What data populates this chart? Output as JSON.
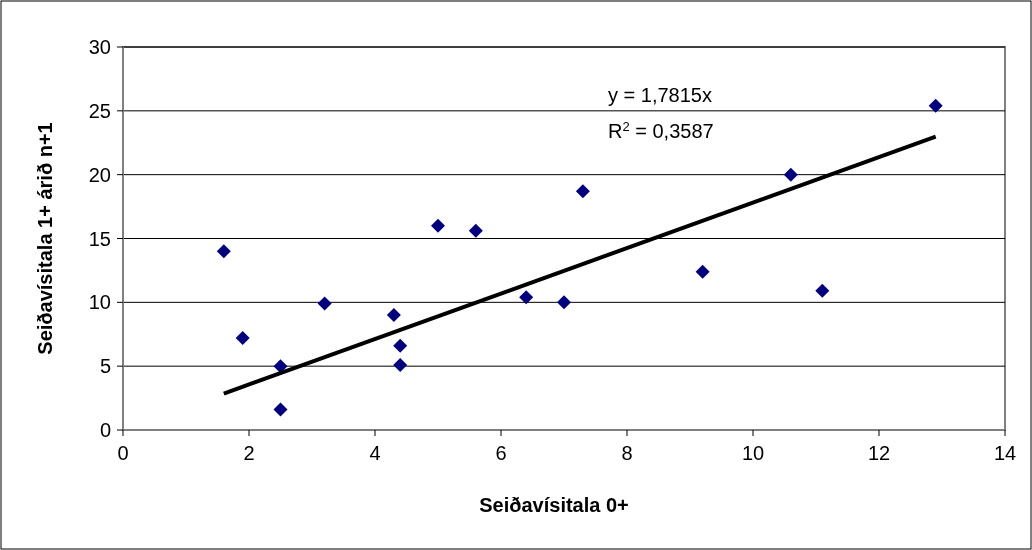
{
  "chart_data": {
    "type": "scatter",
    "xlabel": "Seiðavísitala 0+",
    "ylabel": "Seiðavísitala 1+ árið n+1",
    "series": [
      {
        "color": "#000080",
        "marker": "diamond",
        "x": [
          1.6,
          1.9,
          2.5,
          2.5,
          3.2,
          4.3,
          4.4,
          4.4,
          5.0,
          5.6,
          6.4,
          7.0,
          7.3,
          9.2,
          10.6,
          11.1,
          12.9
        ],
        "values": [
          14.0,
          7.2,
          5.0,
          1.6,
          9.9,
          9.0,
          6.6,
          5.1,
          16.0,
          15.6,
          10.4,
          10.0,
          18.7,
          12.4,
          20.0,
          10.9,
          25.4
        ]
      },
      {
        "type": "line",
        "color": "#000000",
        "line_style": "solid",
        "marker": "none",
        "x": [
          1.6,
          12.9
        ],
        "values": [
          2.85,
          22.98
        ]
      }
    ],
    "annotations": [
      "y = 1,7815x",
      "R$^{2}$ = 0,3587"
    ],
    "xlim": [
      0,
      14
    ],
    "xticks": [
      0,
      2,
      4,
      6,
      8,
      10,
      12,
      14
    ],
    "ylim": [
      0,
      30
    ],
    "yticks": [
      0,
      5,
      10,
      15,
      20,
      25,
      30
    ],
    "grid": "y"
  }
}
